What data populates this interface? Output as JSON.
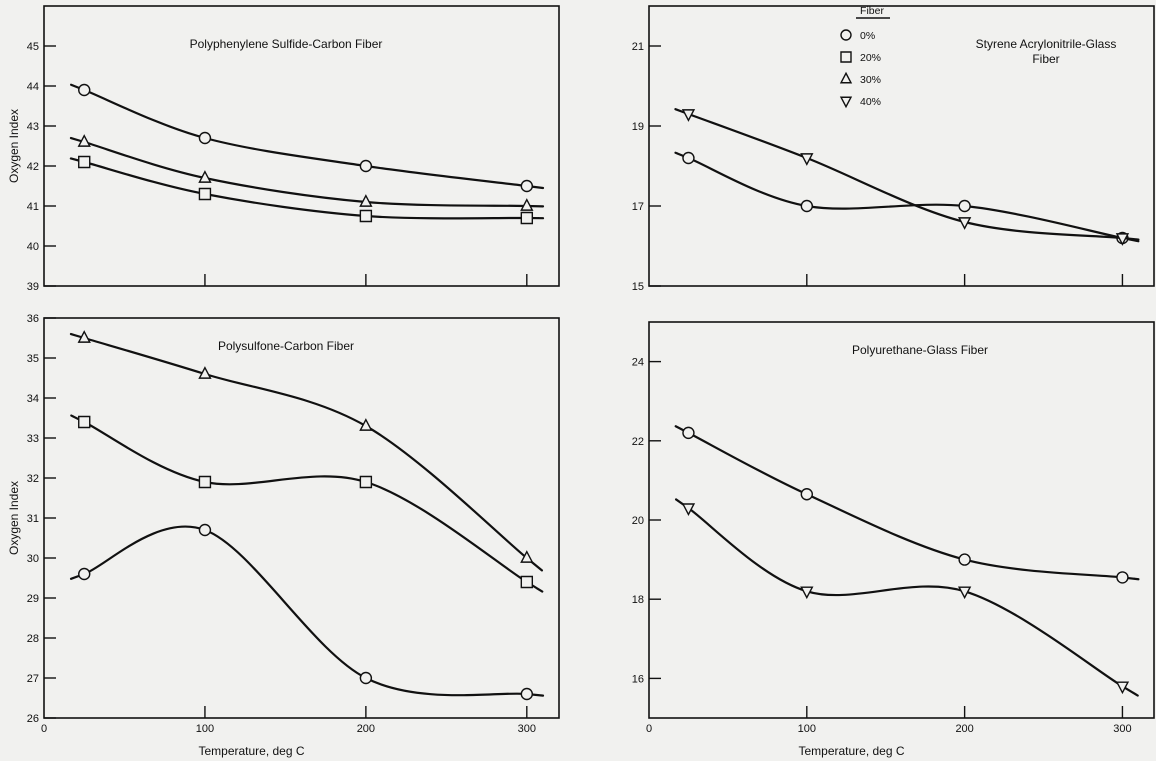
{
  "chart_data": [
    {
      "type": "line",
      "title": "Polyphenylene Sulfide-Carbon Fiber",
      "ylabel": "Oxygen Index",
      "xlabel": "",
      "xlim": [
        0,
        320
      ],
      "ylim": [
        39,
        46
      ],
      "xticks": [
        100,
        200,
        300
      ],
      "xtick_labels": [],
      "yticks": [
        39,
        40,
        41,
        42,
        43,
        44,
        45
      ],
      "series": [
        {
          "marker": "circle",
          "x": [
            25,
            100,
            200,
            300
          ],
          "y": [
            43.9,
            42.7,
            42.0,
            41.5
          ]
        },
        {
          "marker": "triangle",
          "x": [
            25,
            100,
            200,
            300
          ],
          "y": [
            42.6,
            41.7,
            41.1,
            41.0
          ]
        },
        {
          "marker": "square",
          "x": [
            25,
            100,
            200,
            300
          ],
          "y": [
            42.1,
            41.3,
            40.75,
            40.7
          ]
        }
      ]
    },
    {
      "type": "line",
      "title": "Styrene Acrylonitrile-Glass Fiber",
      "ylabel": "",
      "xlabel": "",
      "xlim": [
        0,
        320
      ],
      "ylim": [
        15,
        22
      ],
      "xticks": [
        100,
        200,
        300
      ],
      "xtick_labels": [],
      "yticks": [
        15,
        17,
        19,
        21
      ],
      "legend": {
        "title": "Fiber",
        "position": "top-center",
        "entries": [
          {
            "marker": "circle",
            "label": "0%"
          },
          {
            "marker": "square",
            "label": "20%"
          },
          {
            "marker": "triangle",
            "label": "30%"
          },
          {
            "marker": "triangle-down",
            "label": "40%"
          }
        ]
      },
      "series": [
        {
          "marker": "circle",
          "x": [
            25,
            100,
            200,
            300
          ],
          "y": [
            18.2,
            17.0,
            17.0,
            16.2
          ]
        },
        {
          "marker": "triangle-down",
          "x": [
            25,
            100,
            200,
            300
          ],
          "y": [
            19.3,
            18.2,
            16.6,
            16.2
          ]
        }
      ]
    },
    {
      "type": "line",
      "title": "Polysulfone-Carbon Fiber",
      "ylabel": "Oxygen Index",
      "xlabel": "Temperature, deg C",
      "xlim": [
        0,
        320
      ],
      "ylim": [
        26,
        36
      ],
      "xticks": [
        0,
        100,
        200,
        300
      ],
      "xtick_labels": [
        "0",
        "100",
        "200",
        "300"
      ],
      "yticks": [
        26,
        27,
        28,
        29,
        30,
        31,
        32,
        33,
        34,
        35,
        36
      ],
      "series": [
        {
          "marker": "triangle",
          "x": [
            25,
            100,
            200,
            300
          ],
          "y": [
            35.5,
            34.6,
            33.3,
            30.0
          ]
        },
        {
          "marker": "square",
          "x": [
            25,
            100,
            200,
            300
          ],
          "y": [
            33.4,
            31.9,
            31.9,
            29.4
          ]
        },
        {
          "marker": "circle",
          "x": [
            25,
            100,
            200,
            300
          ],
          "y": [
            29.6,
            30.7,
            27.0,
            26.6
          ]
        }
      ]
    },
    {
      "type": "line",
      "title": "Polyurethane-Glass Fiber",
      "ylabel": "",
      "xlabel": "Temperature, deg C",
      "xlim": [
        0,
        320
      ],
      "ylim": [
        15,
        25
      ],
      "xticks": [
        0,
        100,
        200,
        300
      ],
      "xtick_labels": [
        "0",
        "100",
        "200",
        "300"
      ],
      "yticks": [
        16,
        18,
        20,
        22,
        24
      ],
      "series": [
        {
          "marker": "circle",
          "x": [
            25,
            100,
            200,
            300
          ],
          "y": [
            22.2,
            20.65,
            19.0,
            18.55
          ]
        },
        {
          "marker": "triangle-down",
          "x": [
            25,
            100,
            200,
            300
          ],
          "y": [
            20.3,
            18.2,
            18.2,
            15.8
          ]
        }
      ]
    }
  ]
}
